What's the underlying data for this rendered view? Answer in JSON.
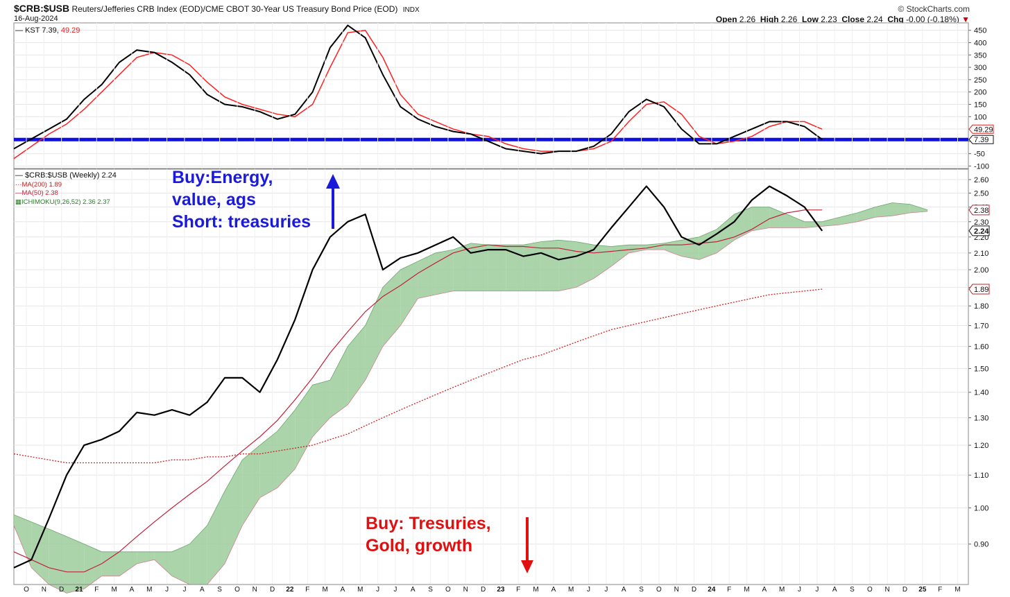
{
  "header": {
    "symbol": "$CRB:$USB",
    "description": "Reuters/Jefferies CRB Index (EOD)/CME CBOT 30-Year US Treasury Bond Price (EOD)",
    "exchange": "INDX",
    "date": "16-Aug-2024",
    "brand": "© StockCharts.com",
    "open_label": "Open",
    "open": "2.26",
    "high_label": "High",
    "high": "2.26",
    "low_label": "Low",
    "low": "2.23",
    "close_label": "Close",
    "close": "2.24",
    "chg_label": "Chg",
    "chg": "-0.00 (-0.18%)",
    "chg_arrow": "▼"
  },
  "legend": {
    "kst": "KST 7.39,",
    "kst_signal": "49.29",
    "price": "$CRB:$USB (Weekly) 2.24",
    "ma200": "MA(200) 1.89",
    "ma50": "MA(50) 2.38",
    "ichimoku": "ICHIMOKU(9,26,52) 2.36 2.37"
  },
  "annotations": {
    "buy_energy": "Buy:Energy,\nvalue, ags\nShort: treasuries",
    "buy_treasuries": "Buy: Tresuries,\nGold, growth"
  },
  "colors": {
    "price": "#000000",
    "kst": "#000000",
    "kst_signal": "#ff2020",
    "ma50": "#c0203a",
    "ma200": "#cc2020",
    "cloud_green": "#9ccc9c",
    "cloud_red": "#f0b0b8",
    "hline": "#1010e0",
    "annotation_blue": "#1a1adc",
    "annotation_red": "#e01010"
  },
  "chart_data": [
    {
      "type": "line",
      "title": "KST",
      "x": [
        "2020-10",
        "2020-11",
        "2020-12",
        "2021-01",
        "2021-02",
        "2021-03",
        "2021-04",
        "2021-05",
        "2021-06",
        "2021-07",
        "2021-08",
        "2021-09",
        "2021-10",
        "2021-11",
        "2021-12",
        "2022-01",
        "2022-02",
        "2022-03",
        "2022-04",
        "2022-05",
        "2022-06",
        "2022-07",
        "2022-08",
        "2022-09",
        "2022-10",
        "2022-11",
        "2022-12",
        "2023-01",
        "2023-02",
        "2023-03",
        "2023-04",
        "2023-05",
        "2023-06",
        "2023-07",
        "2023-08",
        "2023-09",
        "2023-10",
        "2023-11",
        "2023-12",
        "2024-01",
        "2024-02",
        "2024-03",
        "2024-04",
        "2024-05",
        "2024-06",
        "2024-07",
        "2024-08"
      ],
      "series": [
        {
          "name": "KST",
          "values": [
            -30,
            10,
            50,
            90,
            170,
            230,
            320,
            370,
            360,
            320,
            270,
            190,
            150,
            140,
            120,
            90,
            110,
            200,
            380,
            470,
            420,
            270,
            140,
            90,
            60,
            40,
            30,
            0,
            -30,
            -40,
            -50,
            -40,
            -40,
            -20,
            30,
            120,
            170,
            140,
            50,
            -10,
            -10,
            20,
            50,
            80,
            80,
            60,
            7.39
          ]
        },
        {
          "name": "KST signal",
          "values": [
            -70,
            -20,
            30,
            70,
            130,
            200,
            270,
            340,
            360,
            350,
            310,
            240,
            180,
            150,
            130,
            110,
            100,
            150,
            300,
            440,
            450,
            340,
            190,
            110,
            80,
            50,
            30,
            20,
            -10,
            -30,
            -40,
            -40,
            -40,
            -30,
            0,
            80,
            150,
            160,
            110,
            20,
            -10,
            0,
            20,
            60,
            80,
            80,
            49.29
          ]
        }
      ],
      "hline": 7.39,
      "yticks": [
        -100,
        -50,
        0,
        50,
        100,
        150,
        200,
        250,
        300,
        350,
        400,
        450
      ],
      "ylim": [
        -110,
        480
      ],
      "value_labels": [
        "49.29",
        "7.39"
      ]
    },
    {
      "type": "line",
      "title": "$CRB:$USB (Weekly)",
      "x": [
        "2020-10",
        "2020-11",
        "2020-12",
        "2021-01",
        "2021-02",
        "2021-03",
        "2021-04",
        "2021-05",
        "2021-06",
        "2021-07",
        "2021-08",
        "2021-09",
        "2021-10",
        "2021-11",
        "2021-12",
        "2022-01",
        "2022-02",
        "2022-03",
        "2022-04",
        "2022-05",
        "2022-06",
        "2022-07",
        "2022-08",
        "2022-09",
        "2022-10",
        "2022-11",
        "2022-12",
        "2023-01",
        "2023-02",
        "2023-03",
        "2023-04",
        "2023-05",
        "2023-06",
        "2023-07",
        "2023-08",
        "2023-09",
        "2023-10",
        "2023-11",
        "2023-12",
        "2024-01",
        "2024-02",
        "2024-03",
        "2024-04",
        "2024-05",
        "2024-06",
        "2024-07",
        "2024-08"
      ],
      "series": [
        {
          "name": "$CRB:$USB",
          "values": [
            0.84,
            0.86,
            0.97,
            1.1,
            1.2,
            1.22,
            1.25,
            1.32,
            1.31,
            1.33,
            1.31,
            1.36,
            1.46,
            1.46,
            1.4,
            1.54,
            1.73,
            2.0,
            2.2,
            2.3,
            2.35,
            2.0,
            2.07,
            2.1,
            2.15,
            2.2,
            2.1,
            2.12,
            2.12,
            2.08,
            2.1,
            2.06,
            2.08,
            2.12,
            2.26,
            2.4,
            2.55,
            2.4,
            2.2,
            2.15,
            2.22,
            2.3,
            2.45,
            2.55,
            2.48,
            2.4,
            2.24
          ]
        },
        {
          "name": "MA(50)",
          "values": [
            0.88,
            0.86,
            0.84,
            0.83,
            0.83,
            0.85,
            0.88,
            0.92,
            0.96,
            1.0,
            1.04,
            1.08,
            1.13,
            1.18,
            1.23,
            1.29,
            1.37,
            1.46,
            1.57,
            1.67,
            1.77,
            1.85,
            1.91,
            1.98,
            2.04,
            2.1,
            2.13,
            2.15,
            2.14,
            2.14,
            2.13,
            2.13,
            2.11,
            2.1,
            2.11,
            2.12,
            2.13,
            2.15,
            2.15,
            2.16,
            2.17,
            2.2,
            2.25,
            2.32,
            2.36,
            2.38,
            2.38
          ]
        },
        {
          "name": "MA(200)",
          "values": [
            1.17,
            1.16,
            1.15,
            1.14,
            1.14,
            1.14,
            1.14,
            1.14,
            1.14,
            1.15,
            1.15,
            1.16,
            1.16,
            1.17,
            1.17,
            1.18,
            1.19,
            1.2,
            1.22,
            1.24,
            1.27,
            1.3,
            1.33,
            1.36,
            1.39,
            1.42,
            1.45,
            1.48,
            1.51,
            1.54,
            1.56,
            1.59,
            1.62,
            1.65,
            1.68,
            1.7,
            1.72,
            1.74,
            1.76,
            1.78,
            1.8,
            1.82,
            1.84,
            1.86,
            1.87,
            1.88,
            1.89
          ]
        },
        {
          "name": "Ichimoku Span A",
          "values": [
            0.98,
            0.96,
            0.94,
            0.92,
            0.9,
            0.88,
            0.88,
            0.88,
            0.88,
            0.88,
            0.9,
            0.95,
            1.05,
            1.15,
            1.2,
            1.25,
            1.33,
            1.43,
            1.45,
            1.6,
            1.7,
            1.9,
            2.0,
            2.05,
            2.1,
            2.12,
            2.16,
            2.15,
            2.15,
            2.15,
            2.17,
            2.18,
            2.17,
            2.15,
            2.14,
            2.15,
            2.15,
            2.16,
            2.18,
            2.2,
            2.25,
            2.35,
            2.4,
            2.4,
            2.35,
            2.3,
            2.3
          ]
        },
        {
          "name": "Ichimoku Span B",
          "values": [
            0.95,
            0.84,
            0.8,
            0.78,
            0.79,
            0.82,
            0.82,
            0.85,
            0.86,
            0.82,
            0.8,
            0.8,
            0.85,
            0.95,
            1.03,
            1.06,
            1.12,
            1.23,
            1.3,
            1.35,
            1.45,
            1.6,
            1.7,
            1.84,
            1.86,
            1.88,
            1.88,
            1.88,
            1.88,
            1.88,
            1.88,
            1.88,
            1.9,
            1.95,
            2.02,
            2.1,
            2.12,
            2.12,
            2.08,
            2.06,
            2.1,
            2.18,
            2.24,
            2.26,
            2.26,
            2.26,
            2.27
          ]
        }
      ],
      "cloud_extension": {
        "months_ahead": 6,
        "span_a": [
          2.33,
          2.36,
          2.4,
          2.43,
          2.42,
          2.38
        ],
        "span_b": [
          2.28,
          2.3,
          2.33,
          2.34,
          2.36,
          2.37
        ]
      },
      "yticks": [
        0.9,
        1.0,
        1.1,
        1.2,
        1.3,
        1.4,
        1.5,
        1.6,
        1.7,
        1.8,
        1.9,
        2.0,
        2.1,
        2.2,
        2.3,
        2.4,
        2.5,
        2.6
      ],
      "ytick_labels": [
        "0.90",
        "1.00",
        "1.10",
        "1.20",
        "1.30",
        "1.40",
        "1.50",
        "1.60",
        "1.70",
        "1.80",
        "1.90",
        "2.00",
        "2.10",
        "2.20",
        "2.30",
        "2.40",
        "2.50",
        "2.60"
      ],
      "ylim": [
        0.8,
        2.68
      ],
      "yscale": "log",
      "value_labels": [
        "2.38",
        "2.24",
        "1.89"
      ]
    }
  ],
  "x_axis": {
    "labels": [
      "O",
      "N",
      "D",
      "21",
      "F",
      "M",
      "A",
      "M",
      "J",
      "J",
      "A",
      "S",
      "O",
      "N",
      "D",
      "22",
      "F",
      "M",
      "A",
      "M",
      "J",
      "J",
      "A",
      "S",
      "O",
      "N",
      "D",
      "23",
      "F",
      "M",
      "A",
      "M",
      "J",
      "J",
      "A",
      "S",
      "O",
      "N",
      "D",
      "24",
      "F",
      "M",
      "A",
      "M",
      "J",
      "J",
      "A",
      "S",
      "O",
      "N",
      "D",
      "25",
      "F",
      "M"
    ],
    "year_labels": [
      "21",
      "22",
      "23",
      "24",
      "25"
    ]
  }
}
